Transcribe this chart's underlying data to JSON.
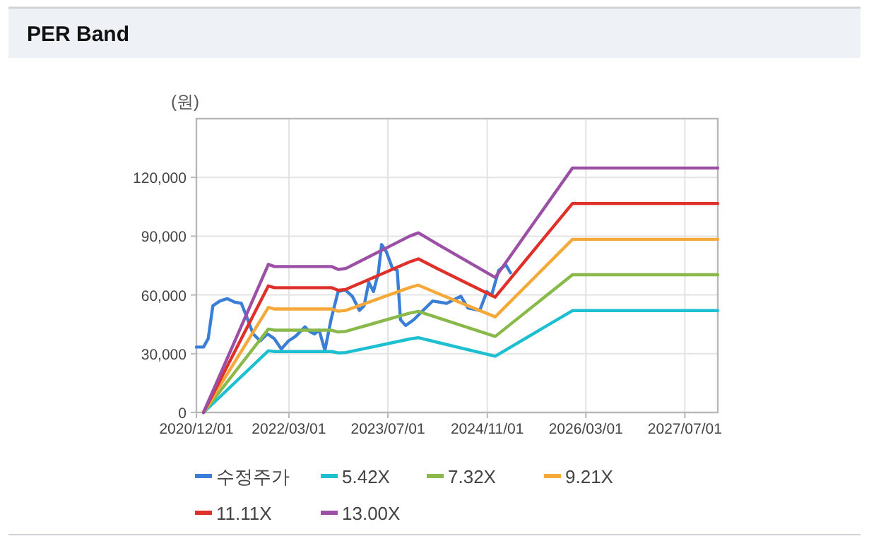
{
  "chart_data": {
    "type": "line",
    "title": "PER Band",
    "ylabel": "(원)",
    "xlim": [
      "2020-12-01",
      "2027-12-10"
    ],
    "xticks": [
      {
        "value": "2020-12-01",
        "label": "2020/12/01"
      },
      {
        "value": "2022-03-01",
        "label": "2022/03/01"
      },
      {
        "value": "2023-07-01",
        "label": "2023/07/01"
      },
      {
        "value": "2024-11-01",
        "label": "2024/11/01"
      },
      {
        "value": "2026-03-01",
        "label": "2026/03/01"
      },
      {
        "value": "2027-07-01",
        "label": "2027/07/01"
      }
    ],
    "ylim": [
      0,
      150000
    ],
    "yticks": [
      {
        "value": 0,
        "label": "0"
      },
      {
        "value": 30000,
        "label": "30,000"
      },
      {
        "value": 60000,
        "label": "60,000"
      },
      {
        "value": 90000,
        "label": "90,000"
      },
      {
        "value": 120000,
        "label": "120,000"
      }
    ],
    "grid": true,
    "legend": "bottom",
    "line_style": "solid",
    "series": [
      {
        "name": "수정주가",
        "color": "#3a7fd5",
        "x": [
          "2020-12-01",
          "2021-01-05",
          "2021-01-28",
          "2021-02-20",
          "2021-03-27",
          "2021-05-01",
          "2021-06-05",
          "2021-07-10",
          "2021-08-02",
          "2021-09-06",
          "2021-10-11",
          "2021-11-15",
          "2021-12-19",
          "2022-01-23",
          "2022-02-27",
          "2022-04-03",
          "2022-05-19",
          "2022-06-12",
          "2022-07-05",
          "2022-07-28",
          "2022-08-25",
          "2022-09-24",
          "2022-10-29",
          "2022-12-03",
          "2023-01-07",
          "2023-02-11",
          "2023-03-06",
          "2023-03-29",
          "2023-04-21",
          "2023-05-15",
          "2023-05-31",
          "2023-06-23",
          "2023-07-23",
          "2023-08-16",
          "2023-09-01",
          "2023-09-26",
          "2023-11-05",
          "2023-12-21",
          "2024-02-06",
          "2024-04-15",
          "2024-06-24",
          "2024-07-29",
          "2024-09-25",
          "2024-10-30",
          "2024-11-22",
          "2024-12-27",
          "2025-01-31",
          "2025-02-23"
        ],
        "values": [
          33400,
          33400,
          37700,
          54500,
          56900,
          58100,
          56400,
          55700,
          49700,
          40100,
          36500,
          40100,
          37700,
          32400,
          36500,
          38900,
          43700,
          41300,
          40100,
          42000,
          31700,
          47300,
          61700,
          62600,
          59300,
          52100,
          54500,
          66500,
          61700,
          71300,
          85700,
          82100,
          73700,
          72500,
          47300,
          44400,
          47300,
          52100,
          56900,
          55700,
          59300,
          53300,
          52100,
          61700,
          59800,
          72500,
          75400,
          71300
        ]
      },
      {
        "name": "5.42X",
        "color": "#1ebfd0",
        "x": [
          "2021-01-05",
          "2021-11-20",
          "2021-12-20",
          "2022-09-27",
          "2022-10-30",
          "2022-12-06",
          "2023-10-16",
          "2023-11-28",
          "2024-03-05",
          "2024-12-10",
          "2025-12-25",
          "2027-12-10"
        ],
        "values": [
          0,
          31500,
          31100,
          31100,
          30400,
          30600,
          37500,
          38200,
          35700,
          28700,
          52000,
          52000
        ]
      },
      {
        "name": "7.32X",
        "color": "#88b94a",
        "x": [
          "2021-01-05",
          "2021-11-20",
          "2021-12-20",
          "2022-09-27",
          "2022-10-30",
          "2022-12-06",
          "2023-10-16",
          "2023-11-28",
          "2024-03-05",
          "2024-12-10",
          "2025-12-25",
          "2027-12-10"
        ],
        "values": [
          0,
          42600,
          42000,
          42000,
          41100,
          41400,
          50700,
          51600,
          48300,
          38800,
          70300,
          70300
        ]
      },
      {
        "name": "9.21X",
        "color": "#f5a93a",
        "x": [
          "2021-01-05",
          "2021-11-20",
          "2021-12-20",
          "2022-09-27",
          "2022-10-30",
          "2022-12-06",
          "2023-10-16",
          "2023-11-28",
          "2024-03-05",
          "2024-12-10",
          "2025-12-25",
          "2027-12-10"
        ],
        "values": [
          0,
          53600,
          52800,
          52800,
          51700,
          52100,
          63800,
          65000,
          60700,
          48800,
          88400,
          88400
        ]
      },
      {
        "name": "11.11X",
        "color": "#e0302a",
        "x": [
          "2021-01-05",
          "2021-11-20",
          "2021-12-20",
          "2022-09-27",
          "2022-10-30",
          "2022-12-06",
          "2023-10-16",
          "2023-11-28",
          "2024-03-05",
          "2024-12-10",
          "2025-12-25",
          "2027-12-10"
        ],
        "values": [
          0,
          64600,
          63700,
          63700,
          62400,
          62800,
          76900,
          78400,
          73200,
          58900,
          106700,
          106700
        ]
      },
      {
        "name": "13.00X",
        "color": "#9b4fa5",
        "x": [
          "2021-01-05",
          "2021-11-20",
          "2021-12-20",
          "2022-09-27",
          "2022-10-30",
          "2022-12-06",
          "2023-10-16",
          "2023-11-28",
          "2024-03-05",
          "2024-12-10",
          "2025-12-25",
          "2027-12-10"
        ],
        "values": [
          0,
          75600,
          74500,
          74500,
          73000,
          73500,
          90000,
          91700,
          85700,
          68900,
          124800,
          124800
        ]
      }
    ]
  }
}
